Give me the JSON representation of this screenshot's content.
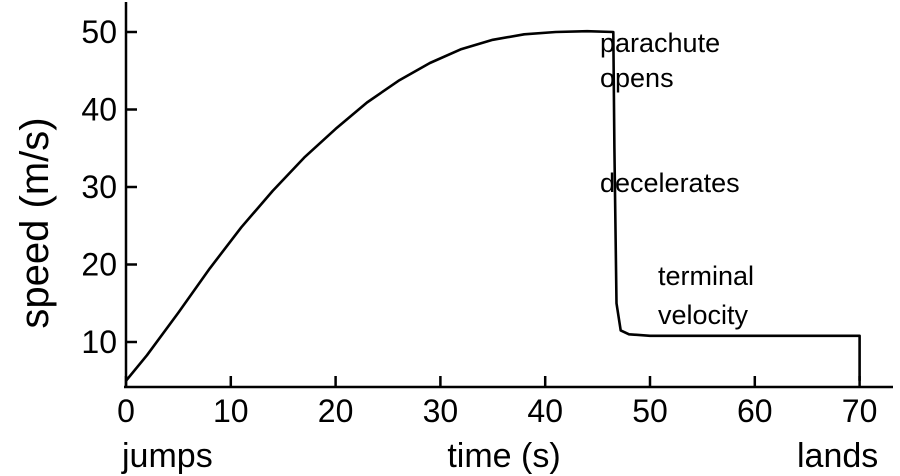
{
  "chart_data": {
    "type": "line",
    "title": "",
    "xlabel": "time (s)",
    "ylabel": "speed (m/s)",
    "xlim": [
      0,
      75
    ],
    "ylim": [
      5,
      52
    ],
    "x_ticks": [
      0,
      10,
      20,
      30,
      40,
      50,
      60,
      70
    ],
    "y_ticks": [
      10,
      20,
      30,
      40,
      50
    ],
    "grid": false,
    "series": [
      {
        "x": [
          0,
          2,
          5,
          8,
          11,
          14,
          17,
          20,
          23,
          26,
          29,
          32,
          35,
          38,
          41,
          44,
          46.5,
          46.6,
          46.8,
          47.2,
          48,
          50,
          55,
          60,
          65,
          70,
          70
        ],
        "y": [
          5,
          8.3,
          13.8,
          19.5,
          24.8,
          29.5,
          33.8,
          37.5,
          40.9,
          43.7,
          46.0,
          47.8,
          49.0,
          49.7,
          50.0,
          50.1,
          50.0,
          35,
          15,
          11.5,
          11.0,
          10.8,
          10.8,
          10.8,
          10.8,
          10.8,
          5
        ]
      }
    ],
    "annotations": [
      {
        "text": "jumps"
      },
      {
        "text": "lands"
      },
      {
        "text": "parachute"
      },
      {
        "text": "opens"
      },
      {
        "text": "decelerates"
      },
      {
        "text": "terminal"
      },
      {
        "text": "velocity"
      }
    ]
  }
}
